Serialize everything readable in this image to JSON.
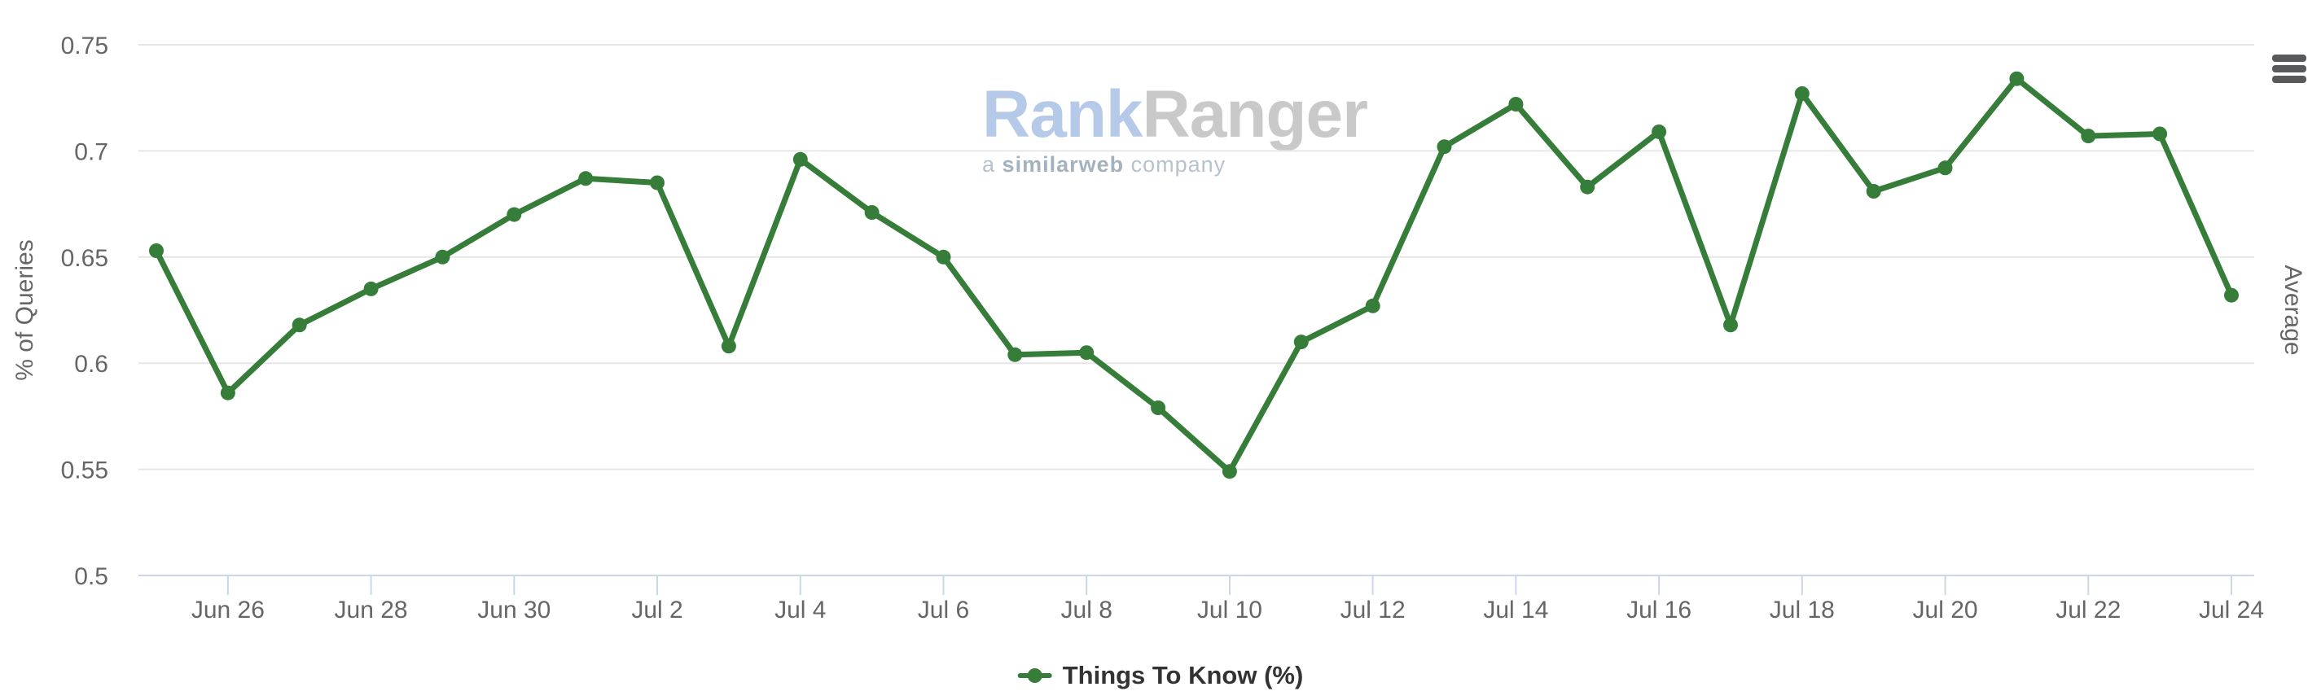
{
  "chart_data": {
    "type": "line",
    "title": "",
    "xlabel": "",
    "ylabel": "% of Queries",
    "right_axis_label": "Average",
    "ylim": [
      0.5,
      0.75
    ],
    "y_tick_step": 0.05,
    "grid": true,
    "legend_position": "bottom-center",
    "categories": [
      "Jun 25",
      "Jun 26",
      "Jun 27",
      "Jun 28",
      "Jun 29",
      "Jun 30",
      "Jul 1",
      "Jul 2",
      "Jul 3",
      "Jul 4",
      "Jul 5",
      "Jul 6",
      "Jul 7",
      "Jul 8",
      "Jul 9",
      "Jul 10",
      "Jul 11",
      "Jul 12",
      "Jul 13",
      "Jul 14",
      "Jul 15",
      "Jul 16",
      "Jul 17",
      "Jul 18",
      "Jul 19",
      "Jul 20",
      "Jul 21",
      "Jul 22",
      "Jul 23",
      "Jul 24"
    ],
    "x_tick_labels": [
      "Jun 26",
      "Jun 28",
      "Jun 30",
      "Jul 2",
      "Jul 4",
      "Jul 6",
      "Jul 8",
      "Jul 10",
      "Jul 12",
      "Jul 14",
      "Jul 16",
      "Jul 18",
      "Jul 20",
      "Jul 22",
      "Jul 24"
    ],
    "y_tick_labels": [
      "0.75",
      "0.7",
      "0.65",
      "0.6",
      "0.55",
      "0.5"
    ],
    "series": [
      {
        "name": "Things To Know (%)",
        "color": "#367d3a",
        "values": [
          0.653,
          0.586,
          0.618,
          0.635,
          0.65,
          0.67,
          0.687,
          0.685,
          0.608,
          0.696,
          0.671,
          0.65,
          0.604,
          0.605,
          0.579,
          0.549,
          0.61,
          0.627,
          0.702,
          0.722,
          0.683,
          0.709,
          0.618,
          0.727,
          0.681,
          0.692,
          0.734,
          0.707,
          0.708,
          0.632
        ]
      }
    ]
  },
  "legend": {
    "label": "Things To Know (%)"
  },
  "watermark": {
    "brand_part1": "Rank",
    "brand_part2": "Ranger",
    "tagline_a": "a",
    "tagline_brand": "similarweb",
    "tagline_company": "company"
  },
  "menu_icon": "hamburger-export-menu-icon",
  "colors": {
    "series_line": "#367d3a",
    "gridline": "#e6e6e6",
    "axis_line": "#ccd6eb",
    "axis_label_text": "#666666",
    "legend_text": "#333333",
    "watermark_blue": "#b5c9e8",
    "watermark_gray": "#c9c9c9",
    "menu_icon_gray": "#58595a"
  }
}
